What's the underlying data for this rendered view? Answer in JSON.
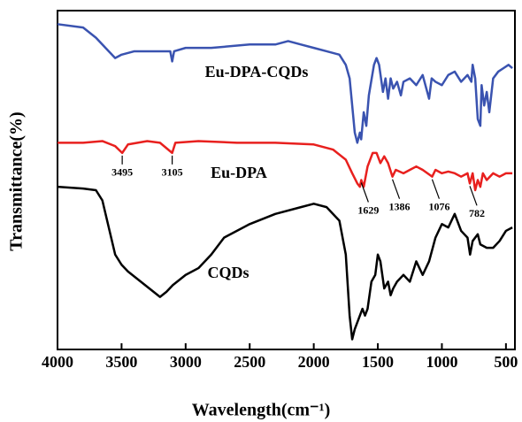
{
  "chart_data": {
    "type": "line",
    "x_label": "Wavelength(cm⁻¹)",
    "y_label": "Transmittance(%)",
    "xlim": [
      4000,
      430
    ],
    "xticks": [
      4000,
      3500,
      3000,
      2500,
      2000,
      1500,
      1000,
      500
    ],
    "ylim": [
      0,
      100
    ],
    "peak_labels": [
      3495,
      3105,
      1629,
      1386,
      1076,
      782
    ],
    "series": [
      {
        "name": "Eu-DPA-CQDs",
        "color": "#3a53b0",
        "x": [
          4000,
          3800,
          3700,
          3600,
          3550,
          3500,
          3400,
          3200,
          3120,
          3105,
          3090,
          3000,
          2800,
          2500,
          2300,
          2200,
          2100,
          2000,
          1900,
          1800,
          1750,
          1720,
          1700,
          1680,
          1660,
          1640,
          1630,
          1610,
          1590,
          1570,
          1530,
          1510,
          1490,
          1460,
          1440,
          1420,
          1400,
          1380,
          1350,
          1320,
          1300,
          1250,
          1200,
          1150,
          1100,
          1080,
          1050,
          1000,
          950,
          900,
          850,
          800,
          770,
          760,
          740,
          720,
          700,
          690,
          670,
          650,
          630,
          600,
          560,
          520,
          480,
          450
        ],
        "values": [
          96,
          95,
          92,
          88,
          86,
          87,
          88,
          88,
          88,
          85,
          88,
          89,
          89,
          90,
          90,
          91,
          90,
          89,
          88,
          87,
          84,
          80,
          72,
          64,
          61,
          64,
          62,
          70,
          66,
          75,
          84,
          86,
          84,
          76,
          80,
          74,
          80,
          77,
          79,
          75,
          79,
          80,
          78,
          81,
          74,
          80,
          79,
          78,
          81,
          82,
          79,
          81,
          79,
          84,
          80,
          68,
          66,
          78,
          72,
          76,
          70,
          80,
          82,
          83,
          84,
          83
        ]
      },
      {
        "name": "Eu-DPA",
        "color": "#e8201e",
        "x": [
          4000,
          3800,
          3650,
          3550,
          3495,
          3450,
          3300,
          3200,
          3105,
          3080,
          2900,
          2600,
          2300,
          2000,
          1850,
          1750,
          1700,
          1660,
          1640,
          1629,
          1610,
          1580,
          1540,
          1510,
          1480,
          1450,
          1420,
          1386,
          1360,
          1300,
          1250,
          1200,
          1150,
          1076,
          1050,
          1000,
          950,
          900,
          850,
          800,
          782,
          760,
          740,
          720,
          700,
          680,
          650,
          600,
          550,
          500,
          450
        ],
        "values": [
          61,
          61,
          61.5,
          60,
          58,
          60.5,
          61.5,
          61,
          58,
          61,
          61.5,
          61,
          61,
          60.5,
          59,
          56,
          52,
          49,
          48,
          50,
          48,
          54,
          58,
          58,
          55,
          57,
          55,
          51,
          53,
          52,
          53,
          54,
          53,
          51,
          53,
          52,
          52.5,
          52,
          51,
          52,
          49,
          52,
          47,
          50,
          48,
          52,
          50,
          52,
          51,
          52,
          52
        ]
      },
      {
        "name": "CQDs",
        "color": "#000000",
        "x": [
          4000,
          3800,
          3700,
          3650,
          3600,
          3550,
          3500,
          3450,
          3350,
          3250,
          3200,
          3150,
          3100,
          3000,
          2900,
          2800,
          2700,
          2500,
          2300,
          2100,
          2000,
          1900,
          1800,
          1750,
          1720,
          1700,
          1680,
          1650,
          1620,
          1600,
          1580,
          1550,
          1520,
          1500,
          1480,
          1450,
          1420,
          1400,
          1380,
          1350,
          1300,
          1250,
          1200,
          1150,
          1100,
          1050,
          1000,
          950,
          900,
          850,
          800,
          780,
          760,
          720,
          700,
          650,
          600,
          550,
          500,
          450
        ],
        "values": [
          48,
          47.5,
          47,
          44,
          36,
          28,
          25,
          23,
          20,
          17,
          15.5,
          17,
          19,
          22,
          24,
          28,
          33,
          37,
          40,
          42,
          43,
          42,
          38,
          28,
          10,
          3,
          6,
          9,
          12,
          10,
          12,
          20,
          22,
          28,
          26,
          18,
          20,
          16,
          18,
          20,
          22,
          20,
          26,
          22,
          26,
          33,
          37,
          36,
          40,
          35,
          33,
          28,
          32,
          34,
          31,
          30,
          30,
          32,
          35,
          36
        ]
      }
    ]
  }
}
